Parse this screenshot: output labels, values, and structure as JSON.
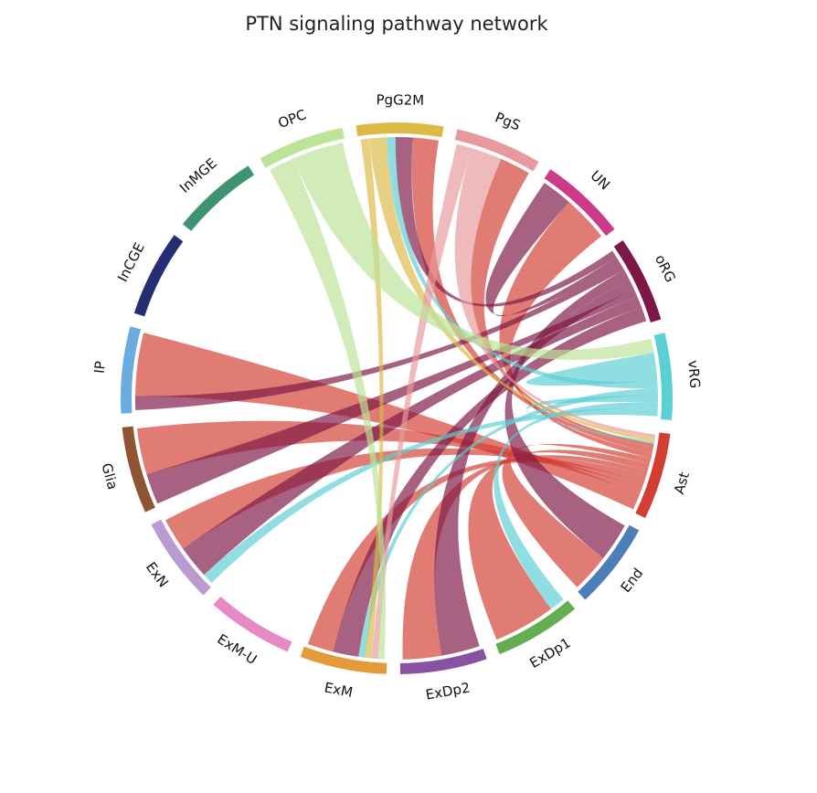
{
  "title": "PTN signaling pathway network",
  "chart_data": {
    "type": "chord",
    "title": "PTN signaling pathway network",
    "groups": [
      {
        "name": "vRG",
        "color": "#5ccfd4"
      },
      {
        "name": "oRG",
        "color": "#7d1846"
      },
      {
        "name": "UN",
        "color": "#cc3b8a"
      },
      {
        "name": "PgS",
        "color": "#e8999c"
      },
      {
        "name": "PgG2M",
        "color": "#dcba45"
      },
      {
        "name": "OPC",
        "color": "#bde398"
      },
      {
        "name": "InMGE",
        "color": "#3e9470"
      },
      {
        "name": "InCGE",
        "color": "#232e74"
      },
      {
        "name": "IP",
        "color": "#6aabe0"
      },
      {
        "name": "Glia",
        "color": "#8f5533"
      },
      {
        "name": "ExN",
        "color": "#b99ad1"
      },
      {
        "name": "ExM-U",
        "color": "#e78ac4"
      },
      {
        "name": "ExM",
        "color": "#e49a38"
      },
      {
        "name": "ExDp2",
        "color": "#8752a0"
      },
      {
        "name": "ExDp1",
        "color": "#64ad52"
      },
      {
        "name": "End",
        "color": "#4d7eb5"
      },
      {
        "name": "Ast",
        "color": "#d33e33"
      }
    ],
    "links": [
      {
        "source": "Ast",
        "target": "IP",
        "value": 9
      },
      {
        "source": "Ast",
        "target": "Glia",
        "value": 3
      },
      {
        "source": "Ast",
        "target": "ExN",
        "value": 3
      },
      {
        "source": "Ast",
        "target": "ExM",
        "value": 4
      },
      {
        "source": "Ast",
        "target": "ExDp2",
        "value": 3
      },
      {
        "source": "Ast",
        "target": "ExDp1",
        "value": 4
      },
      {
        "source": "Ast",
        "target": "End",
        "value": 3
      },
      {
        "source": "Ast",
        "target": "UN",
        "value": 3
      },
      {
        "source": "Ast",
        "target": "PgG2M",
        "value": 3
      },
      {
        "source": "Ast",
        "target": "PgS",
        "value": 2
      },
      {
        "source": "oRG",
        "target": "ExM",
        "value": 4
      },
      {
        "source": "oRG",
        "target": "ExN",
        "value": 3
      },
      {
        "source": "oRG",
        "target": "Glia",
        "value": 2
      },
      {
        "source": "oRG",
        "target": "ExDp2",
        "value": 3
      },
      {
        "source": "oRG",
        "target": "End",
        "value": 3
      },
      {
        "source": "oRG",
        "target": "IP",
        "value": 2
      },
      {
        "source": "oRG",
        "target": "UN",
        "value": 2
      },
      {
        "source": "oRG",
        "target": "PgG2M",
        "value": 2
      },
      {
        "source": "vRG",
        "target": "ExN",
        "value": 1
      },
      {
        "source": "vRG",
        "target": "ExDp1",
        "value": 1
      },
      {
        "source": "vRG",
        "target": "Ast",
        "value": 1
      },
      {
        "source": "vRG",
        "target": "ExM",
        "value": 1
      },
      {
        "source": "vRG",
        "target": "PgG2M",
        "value": 1
      },
      {
        "source": "vRG",
        "target": "vRG",
        "value": 2
      },
      {
        "source": "PgG2M",
        "target": "Ast",
        "value": 2
      },
      {
        "source": "PgG2M",
        "target": "ExM",
        "value": 1
      },
      {
        "source": "PgS",
        "target": "Ast",
        "value": 2
      },
      {
        "source": "PgS",
        "target": "ExM",
        "value": 1
      },
      {
        "source": "OPC",
        "target": "vRG",
        "value": 2
      },
      {
        "source": "OPC",
        "target": "ExM",
        "value": 1
      }
    ]
  }
}
